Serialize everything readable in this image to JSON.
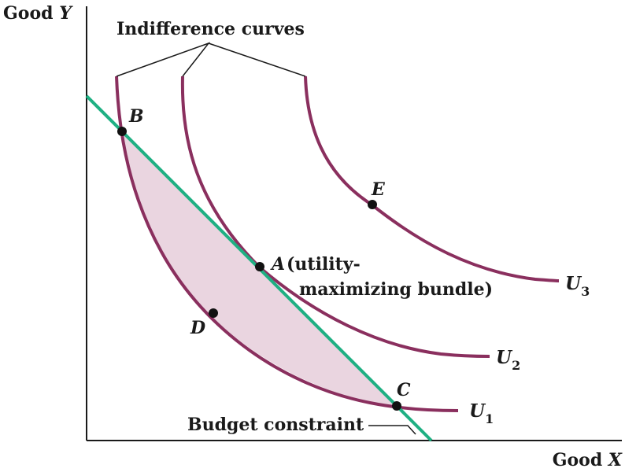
{
  "axes": {
    "y_label_word": "Good",
    "y_label_var": "Y",
    "x_label_word": "Good",
    "x_label_var": "X"
  },
  "callouts": {
    "indifference": "Indifference curves",
    "budget": "Budget constraint"
  },
  "points": {
    "A": "A",
    "B": "B",
    "C": "C",
    "D": "D",
    "E": "E"
  },
  "annotation": {
    "line1": "(utility-",
    "line2": "maximizing bundle)"
  },
  "curves": {
    "u1_letter": "U",
    "u1_sub": "1",
    "u2_letter": "U",
    "u2_sub": "2",
    "u3_letter": "U",
    "u3_sub": "3"
  },
  "colors": {
    "curve": "#8a2f5e",
    "budget": "#1fb083",
    "shade": "#ead5e0",
    "axis": "#1a1a1a",
    "dot": "#111111"
  }
}
